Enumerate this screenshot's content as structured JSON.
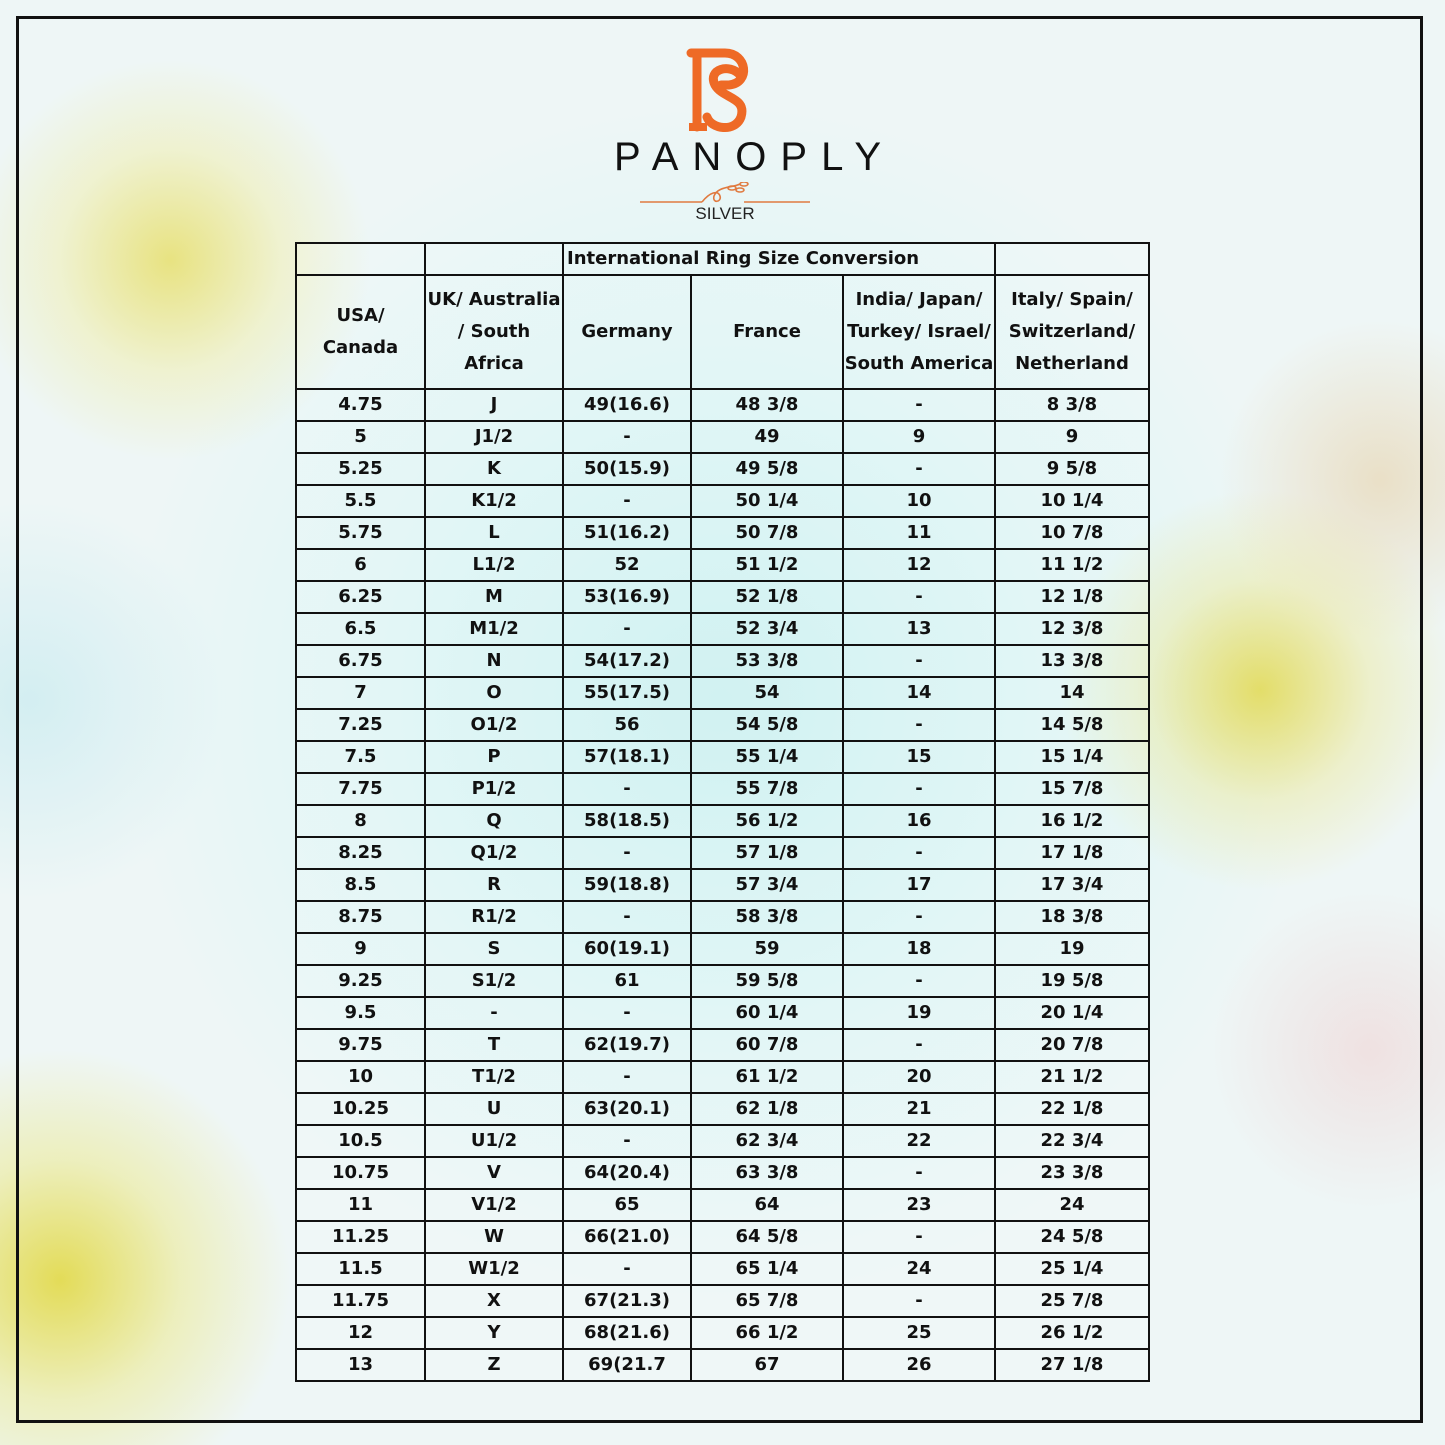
{
  "logo": {
    "monogram": "PS",
    "brand": "PANOPLY",
    "sub": "SILVER",
    "accent": "#ee6a26"
  },
  "table": {
    "title": "International Ring Size Conversion",
    "headers": [
      "USA/ Canada",
      "UK/ Australia / South Africa",
      "Germany",
      "France",
      "India/ Japan/ Turkey/ Israel/ South America",
      "Italy/ Spain/ Switzerland/ Netherland"
    ],
    "rows": [
      [
        "4.75",
        "J",
        "49(16.6)",
        "48 3/8",
        "-",
        "8 3/8"
      ],
      [
        "5",
        "J1/2",
        "-",
        "49",
        "9",
        "9"
      ],
      [
        "5.25",
        "K",
        "50(15.9)",
        "49 5/8",
        "-",
        "9 5/8"
      ],
      [
        "5.5",
        "K1/2",
        "-",
        "50 1/4",
        "10",
        "10 1/4"
      ],
      [
        "5.75",
        "L",
        "51(16.2)",
        "50 7/8",
        "11",
        "10 7/8"
      ],
      [
        "6",
        "L1/2",
        "52",
        "51 1/2",
        "12",
        "11 1/2"
      ],
      [
        "6.25",
        "M",
        "53(16.9)",
        "52 1/8",
        "-",
        "12 1/8"
      ],
      [
        "6.5",
        "M1/2",
        "-",
        "52 3/4",
        "13",
        "12 3/8"
      ],
      [
        "6.75",
        "N",
        "54(17.2)",
        "53 3/8",
        "-",
        "13 3/8"
      ],
      [
        "7",
        "O",
        "55(17.5)",
        "54",
        "14",
        "14"
      ],
      [
        "7.25",
        "O1/2",
        "56",
        "54 5/8",
        "-",
        "14 5/8"
      ],
      [
        "7.5",
        "P",
        "57(18.1)",
        "55 1/4",
        "15",
        "15 1/4"
      ],
      [
        "7.75",
        "P1/2",
        "-",
        "55 7/8",
        "-",
        "15 7/8"
      ],
      [
        "8",
        "Q",
        "58(18.5)",
        "56 1/2",
        "16",
        "16 1/2"
      ],
      [
        "8.25",
        "Q1/2",
        "-",
        "57 1/8",
        "-",
        "17 1/8"
      ],
      [
        "8.5",
        "R",
        "59(18.8)",
        "57 3/4",
        "17",
        "17 3/4"
      ],
      [
        "8.75",
        "R1/2",
        "-",
        "58 3/8",
        "-",
        "18 3/8"
      ],
      [
        "9",
        "S",
        "60(19.1)",
        "59",
        "18",
        "19"
      ],
      [
        "9.25",
        "S1/2",
        "61",
        "59 5/8",
        "-",
        "19 5/8"
      ],
      [
        "9.5",
        "-",
        "-",
        "60 1/4",
        "19",
        "20 1/4"
      ],
      [
        "9.75",
        "T",
        "62(19.7)",
        "60 7/8",
        "-",
        "20 7/8"
      ],
      [
        "10",
        "T1/2",
        "-",
        "61 1/2",
        "20",
        "21 1/2"
      ],
      [
        "10.25",
        "U",
        "63(20.1)",
        "62 1/8",
        "21",
        "22 1/8"
      ],
      [
        "10.5",
        "U1/2",
        "-",
        "62 3/4",
        "22",
        "22 3/4"
      ],
      [
        "10.75",
        "V",
        "64(20.4)",
        "63 3/8",
        "-",
        "23 3/8"
      ],
      [
        "11",
        "V1/2",
        "65",
        "64",
        "23",
        "24"
      ],
      [
        "11.25",
        "W",
        "66(21.0)",
        "64 5/8",
        "-",
        "24 5/8"
      ],
      [
        "11.5",
        "W1/2",
        "-",
        "65 1/4",
        "24",
        "25 1/4"
      ],
      [
        "11.75",
        "X",
        "67(21.3)",
        "65 7/8",
        "-",
        "25 7/8"
      ],
      [
        "12",
        "Y",
        "68(21.6)",
        "66 1/2",
        "25",
        "26 1/2"
      ],
      [
        "13",
        "Z",
        "69(21.7",
        "67",
        "26",
        "27 1/8"
      ]
    ]
  }
}
